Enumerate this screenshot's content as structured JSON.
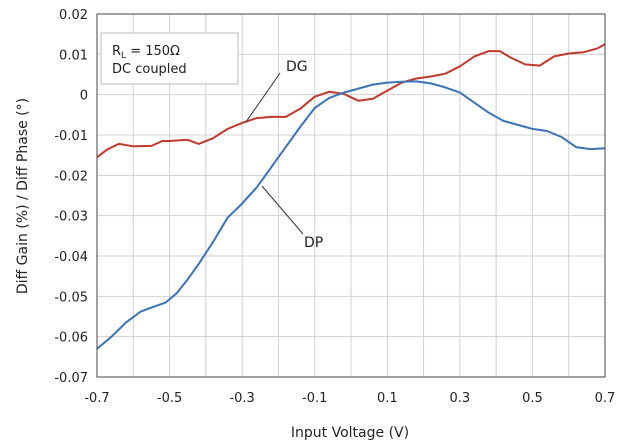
{
  "chart_data": {
    "type": "line",
    "title": "",
    "xlabel": "Input Voltage (V)",
    "ylabel": "Diff Gain (%) / Diff Phase (°)",
    "xlim": [
      -0.7,
      0.7
    ],
    "ylim": [
      -0.07,
      0.02
    ],
    "xticks": [
      -0.7,
      -0.5,
      -0.3,
      -0.1,
      0.1,
      0.3,
      0.5,
      0.7
    ],
    "xtick_labels": [
      "-0.7",
      "-0.5",
      "-0.3",
      "-0.1",
      "0.1",
      "0.3",
      "0.5",
      "0.7"
    ],
    "yticks": [
      0.02,
      0.01,
      0,
      -0.01,
      -0.02,
      -0.03,
      -0.04,
      -0.05,
      -0.06,
      -0.07
    ],
    "ytick_labels": [
      "0.02",
      "0.01",
      "0",
      "-0.01",
      "-0.02",
      "-0.03",
      "-0.04",
      "-0.05",
      "-0.06",
      "-0.07"
    ],
    "grid": true,
    "annotation": {
      "line1_main": "R",
      "line1_sub": "L",
      "line1_rest": " = 150Ω",
      "line2": "DC coupled"
    },
    "series": [
      {
        "name": "DG",
        "color": "#c0392b",
        "x": [
          -0.7,
          -0.67,
          -0.64,
          -0.6,
          -0.55,
          -0.52,
          -0.5,
          -0.45,
          -0.42,
          -0.38,
          -0.34,
          -0.3,
          -0.26,
          -0.22,
          -0.18,
          -0.14,
          -0.1,
          -0.06,
          -0.02,
          0.02,
          0.06,
          0.1,
          0.14,
          0.18,
          0.22,
          0.26,
          0.3,
          0.34,
          0.38,
          0.41,
          0.44,
          0.48,
          0.52,
          0.56,
          0.6,
          0.64,
          0.68,
          0.7
        ],
        "y": [
          -0.0155,
          -0.0135,
          -0.0122,
          -0.0128,
          -0.0127,
          -0.0115,
          -0.0115,
          -0.0112,
          -0.0122,
          -0.0108,
          -0.0085,
          -0.007,
          -0.0058,
          -0.0055,
          -0.0055,
          -0.0035,
          -0.0005,
          0.0007,
          0.0002,
          -0.0015,
          -0.001,
          0.001,
          0.003,
          0.004,
          0.0045,
          0.0052,
          0.007,
          0.0095,
          0.0108,
          0.0108,
          0.0092,
          0.0075,
          0.0072,
          0.0095,
          0.0102,
          0.0105,
          0.0115,
          0.0125
        ]
      },
      {
        "name": "DP",
        "color": "#3b73b9",
        "x": [
          -0.7,
          -0.66,
          -0.62,
          -0.58,
          -0.55,
          -0.51,
          -0.48,
          -0.45,
          -0.42,
          -0.38,
          -0.34,
          -0.3,
          -0.26,
          -0.22,
          -0.18,
          -0.14,
          -0.1,
          -0.06,
          -0.02,
          0.02,
          0.06,
          0.1,
          0.14,
          0.18,
          0.22,
          0.26,
          0.3,
          0.34,
          0.38,
          0.42,
          0.46,
          0.5,
          0.54,
          0.58,
          0.62,
          0.66,
          0.7
        ],
        "y": [
          -0.063,
          -0.06,
          -0.0565,
          -0.0538,
          -0.0528,
          -0.0515,
          -0.0492,
          -0.0458,
          -0.042,
          -0.0365,
          -0.0305,
          -0.027,
          -0.023,
          -0.018,
          -0.013,
          -0.008,
          -0.0033,
          -0.0008,
          0.0005,
          0.0015,
          0.0025,
          0.003,
          0.0032,
          0.0033,
          0.0028,
          0.0018,
          0.0005,
          -0.002,
          -0.0045,
          -0.0065,
          -0.0075,
          -0.0085,
          -0.009,
          -0.0105,
          -0.013,
          -0.0135,
          -0.0133
        ]
      }
    ]
  }
}
